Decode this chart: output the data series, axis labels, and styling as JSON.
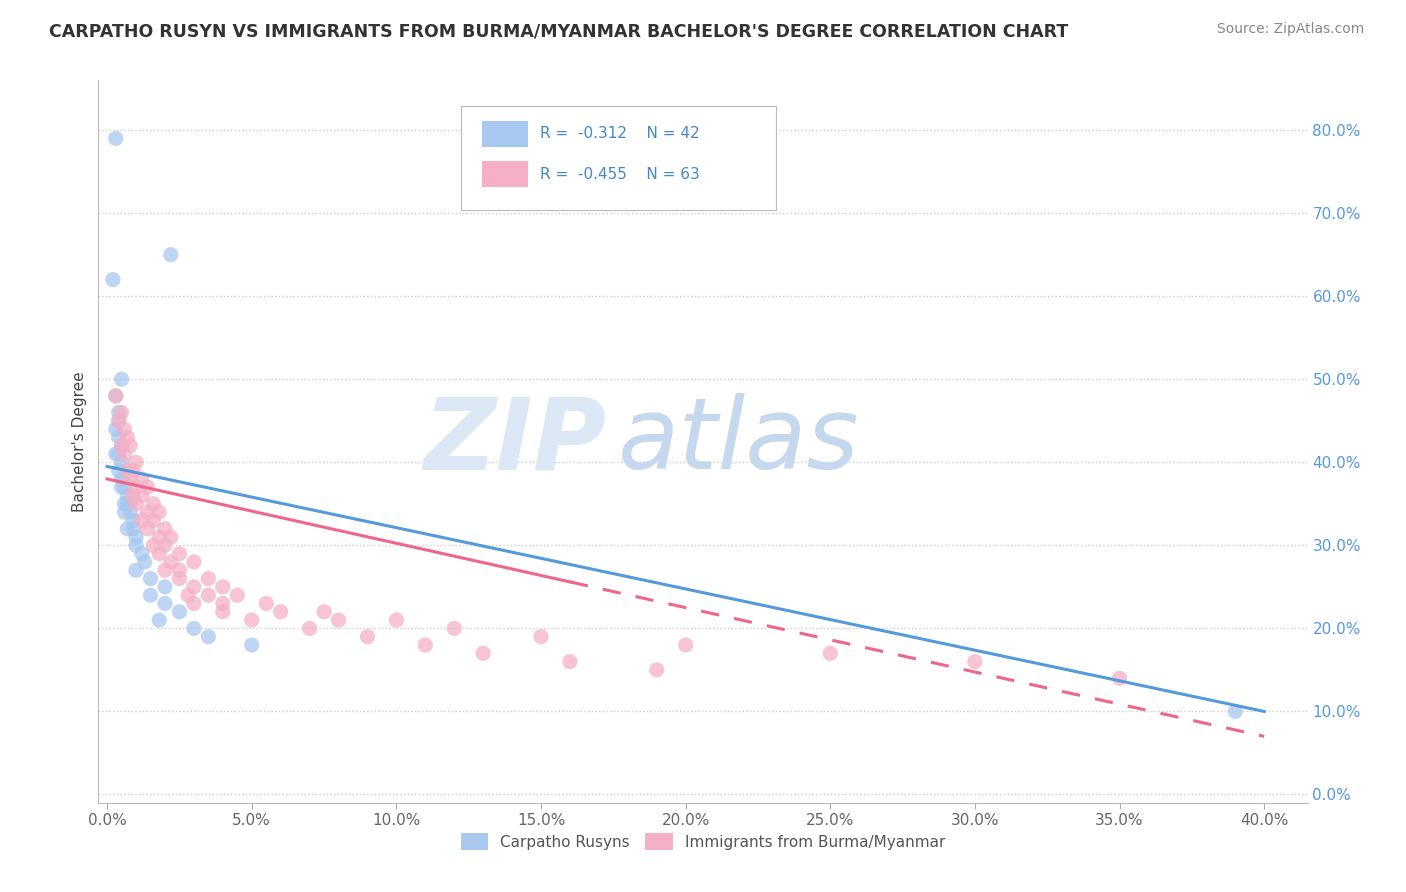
{
  "title": "CARPATHO RUSYN VS IMMIGRANTS FROM BURMA/MYANMAR BACHELOR'S DEGREE CORRELATION CHART",
  "source": "Source: ZipAtlas.com",
  "ylabel_label": "Bachelor's Degree",
  "xmin": -0.003,
  "xmax": 0.415,
  "ymin": -0.01,
  "ymax": 0.86,
  "xlabel_ticks": [
    0.0,
    0.05,
    0.1,
    0.15,
    0.2,
    0.25,
    0.3,
    0.35,
    0.4
  ],
  "ylabel_ticks": [
    0.0,
    0.1,
    0.2,
    0.3,
    0.4,
    0.5,
    0.6,
    0.7,
    0.8
  ],
  "blue_R": -0.312,
  "blue_N": 42,
  "pink_R": -0.455,
  "pink_N": 63,
  "blue_color": "#a8c8f0",
  "pink_color": "#f5b0c5",
  "blue_line_color": "#5599dd",
  "pink_line_color": "#ee6688",
  "blue_scatter": [
    [
      0.003,
      0.79
    ],
    [
      0.022,
      0.65
    ],
    [
      0.002,
      0.62
    ],
    [
      0.005,
      0.5
    ],
    [
      0.003,
      0.48
    ],
    [
      0.004,
      0.46
    ],
    [
      0.004,
      0.45
    ],
    [
      0.003,
      0.44
    ],
    [
      0.004,
      0.43
    ],
    [
      0.005,
      0.42
    ],
    [
      0.003,
      0.41
    ],
    [
      0.004,
      0.41
    ],
    [
      0.005,
      0.4
    ],
    [
      0.004,
      0.39
    ],
    [
      0.005,
      0.38
    ],
    [
      0.006,
      0.38
    ],
    [
      0.005,
      0.37
    ],
    [
      0.006,
      0.37
    ],
    [
      0.007,
      0.36
    ],
    [
      0.006,
      0.35
    ],
    [
      0.007,
      0.35
    ],
    [
      0.008,
      0.35
    ],
    [
      0.006,
      0.34
    ],
    [
      0.008,
      0.34
    ],
    [
      0.009,
      0.33
    ],
    [
      0.007,
      0.32
    ],
    [
      0.009,
      0.32
    ],
    [
      0.01,
      0.31
    ],
    [
      0.01,
      0.3
    ],
    [
      0.012,
      0.29
    ],
    [
      0.013,
      0.28
    ],
    [
      0.01,
      0.27
    ],
    [
      0.015,
      0.26
    ],
    [
      0.02,
      0.25
    ],
    [
      0.015,
      0.24
    ],
    [
      0.02,
      0.23
    ],
    [
      0.025,
      0.22
    ],
    [
      0.018,
      0.21
    ],
    [
      0.03,
      0.2
    ],
    [
      0.035,
      0.19
    ],
    [
      0.05,
      0.18
    ],
    [
      0.39,
      0.1
    ]
  ],
  "pink_scatter": [
    [
      0.003,
      0.48
    ],
    [
      0.005,
      0.46
    ],
    [
      0.004,
      0.45
    ],
    [
      0.006,
      0.44
    ],
    [
      0.007,
      0.43
    ],
    [
      0.005,
      0.42
    ],
    [
      0.008,
      0.42
    ],
    [
      0.006,
      0.41
    ],
    [
      0.01,
      0.4
    ],
    [
      0.007,
      0.39
    ],
    [
      0.009,
      0.39
    ],
    [
      0.012,
      0.38
    ],
    [
      0.008,
      0.38
    ],
    [
      0.01,
      0.37
    ],
    [
      0.014,
      0.37
    ],
    [
      0.009,
      0.36
    ],
    [
      0.012,
      0.36
    ],
    [
      0.016,
      0.35
    ],
    [
      0.01,
      0.35
    ],
    [
      0.014,
      0.34
    ],
    [
      0.018,
      0.34
    ],
    [
      0.012,
      0.33
    ],
    [
      0.016,
      0.33
    ],
    [
      0.02,
      0.32
    ],
    [
      0.014,
      0.32
    ],
    [
      0.018,
      0.31
    ],
    [
      0.022,
      0.31
    ],
    [
      0.016,
      0.3
    ],
    [
      0.02,
      0.3
    ],
    [
      0.025,
      0.29
    ],
    [
      0.018,
      0.29
    ],
    [
      0.022,
      0.28
    ],
    [
      0.03,
      0.28
    ],
    [
      0.02,
      0.27
    ],
    [
      0.025,
      0.27
    ],
    [
      0.035,
      0.26
    ],
    [
      0.025,
      0.26
    ],
    [
      0.03,
      0.25
    ],
    [
      0.04,
      0.25
    ],
    [
      0.028,
      0.24
    ],
    [
      0.035,
      0.24
    ],
    [
      0.045,
      0.24
    ],
    [
      0.03,
      0.23
    ],
    [
      0.04,
      0.23
    ],
    [
      0.055,
      0.23
    ],
    [
      0.04,
      0.22
    ],
    [
      0.06,
      0.22
    ],
    [
      0.075,
      0.22
    ],
    [
      0.05,
      0.21
    ],
    [
      0.08,
      0.21
    ],
    [
      0.1,
      0.21
    ],
    [
      0.07,
      0.2
    ],
    [
      0.12,
      0.2
    ],
    [
      0.09,
      0.19
    ],
    [
      0.15,
      0.19
    ],
    [
      0.11,
      0.18
    ],
    [
      0.2,
      0.18
    ],
    [
      0.13,
      0.17
    ],
    [
      0.25,
      0.17
    ],
    [
      0.16,
      0.16
    ],
    [
      0.3,
      0.16
    ],
    [
      0.19,
      0.15
    ],
    [
      0.35,
      0.14
    ]
  ],
  "blue_line_x0": 0.0,
  "blue_line_y0": 0.395,
  "blue_line_x1": 0.4,
  "blue_line_y1": 0.1,
  "pink_line_x0": 0.0,
  "pink_line_y0": 0.38,
  "pink_line_solid_x1": 0.16,
  "pink_line_dash_x1": 0.4,
  "pink_line_y1": 0.07,
  "watermark_zip_color": "#dce8f5",
  "watermark_atlas_color": "#c5d8ee"
}
